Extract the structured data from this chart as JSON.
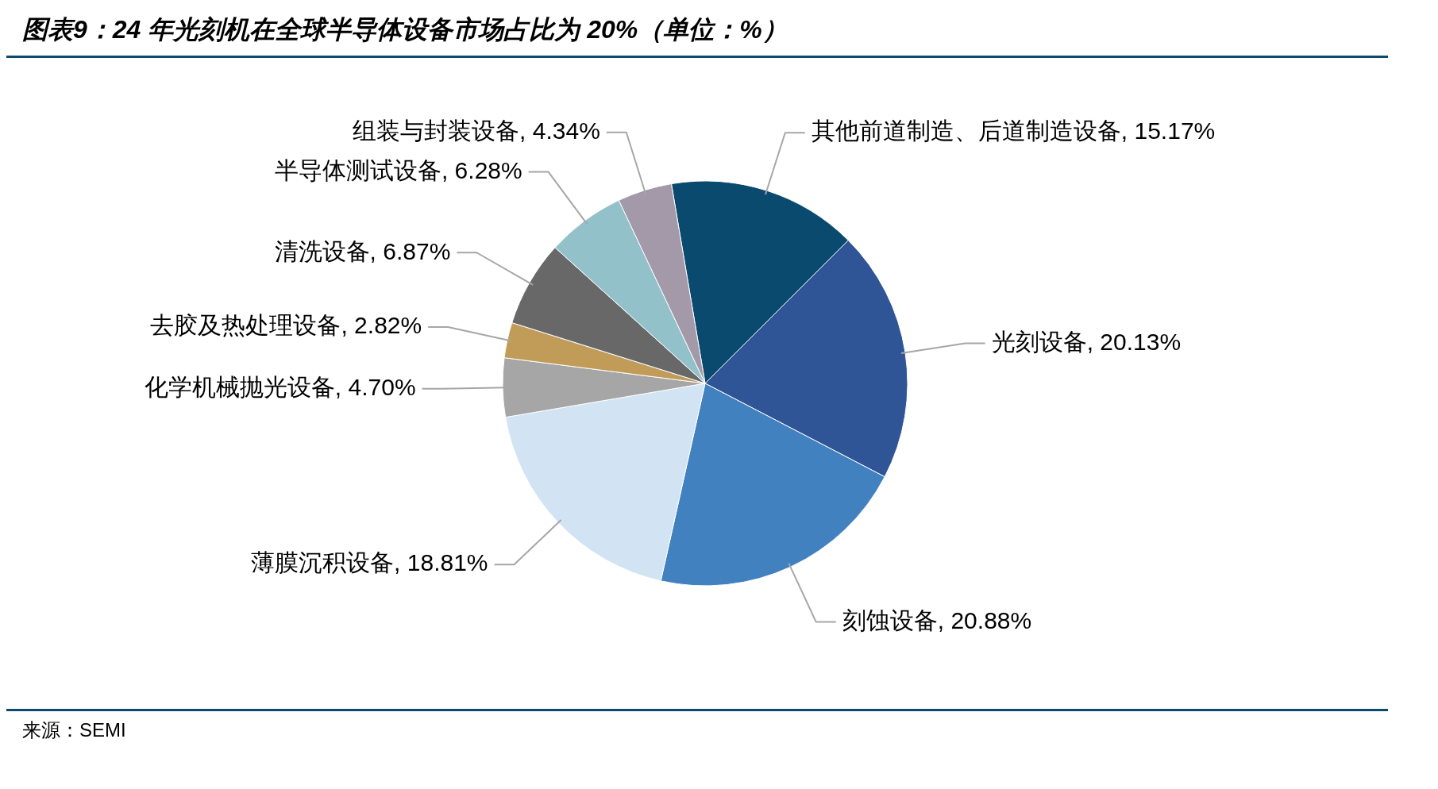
{
  "chart_data": {
    "type": "pie",
    "title": "图表9：24 年光刻机在全球半导体设备市场占比为 20%（单位：%）",
    "categories": [
      "其他前道制造、后道制造设备",
      "光刻设备",
      "刻蚀设备",
      "薄膜沉积设备",
      "化学机械抛光设备",
      "去胶及热处理设备",
      "清洗设备",
      "半导体测试设备",
      "组装与封装设备"
    ],
    "values": [
      15.17,
      20.13,
      20.88,
      18.81,
      4.7,
      2.82,
      6.87,
      6.28,
      4.34
    ],
    "value_labels": [
      "15.17%",
      "20.13%",
      "20.88%",
      "18.81%",
      "4.70%",
      "2.82%",
      "6.87%",
      "6.28%",
      "4.34%"
    ],
    "colors": [
      "#0b4a6f",
      "#2f5597",
      "#4281c0",
      "#d2e3f3",
      "#a6a6a6",
      "#c19c59",
      "#686868",
      "#92c1c9",
      "#a399a8"
    ],
    "legend": false,
    "annotations": [
      "来源：SEMI"
    ]
  }
}
